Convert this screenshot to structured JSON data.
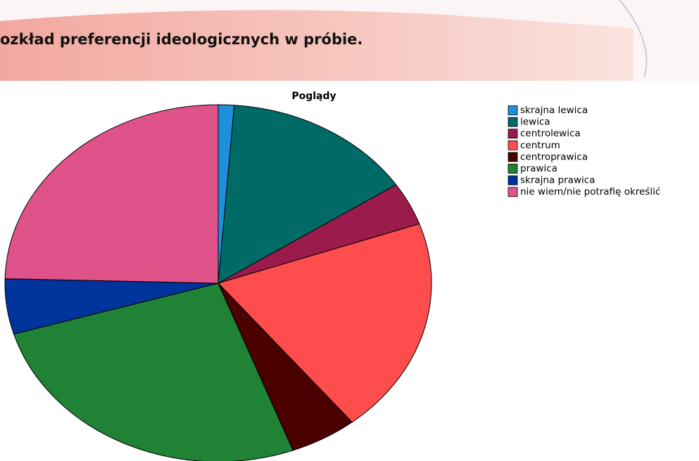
{
  "header": {
    "title": "ozkład preferencji ideologicznych w próbie."
  },
  "chart_data": {
    "type": "pie",
    "title": "Poglądy",
    "categories": [
      "skrajna lewica",
      "lewica",
      "centrolewica",
      "centrum",
      "centroprawica",
      "prawica",
      "skrajna prawica",
      "nie wiem/nie potrafię określić"
    ],
    "values": [
      1.2,
      14.5,
      3.9,
      19.6,
      5.1,
      26.1,
      5.0,
      24.6
    ],
    "colors": [
      "#1f8fdc",
      "#006a66",
      "#9b1c4c",
      "#ff4d4d",
      "#4a0000",
      "#1f8235",
      "#00339b",
      "#e0528a"
    ],
    "legend": "right"
  }
}
